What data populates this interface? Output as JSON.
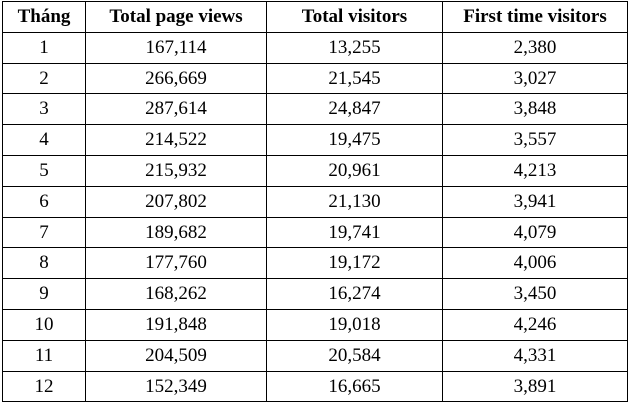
{
  "table": {
    "headers": [
      "Tháng",
      "Total page views",
      "Total visitors",
      "First time visitors"
    ],
    "rows": [
      [
        "1",
        "167,114",
        "13,255",
        "2,380"
      ],
      [
        "2",
        "266,669",
        "21,545",
        "3,027"
      ],
      [
        "3",
        "287,614",
        "24,847",
        "3,848"
      ],
      [
        "4",
        "214,522",
        "19,475",
        "3,557"
      ],
      [
        "5",
        "215,932",
        "20,961",
        "4,213"
      ],
      [
        "6",
        "207,802",
        "21,130",
        "3,941"
      ],
      [
        "7",
        "189,682",
        "19,741",
        "4,079"
      ],
      [
        "8",
        "177,760",
        "19,172",
        "4,006"
      ],
      [
        "9",
        "168,262",
        "16,274",
        "3,450"
      ],
      [
        "10",
        "191,848",
        "19,018",
        "4,246"
      ],
      [
        "11",
        "204,509",
        "20,584",
        "4,331"
      ],
      [
        "12",
        "152,349",
        "16,665",
        "3,891"
      ]
    ]
  }
}
